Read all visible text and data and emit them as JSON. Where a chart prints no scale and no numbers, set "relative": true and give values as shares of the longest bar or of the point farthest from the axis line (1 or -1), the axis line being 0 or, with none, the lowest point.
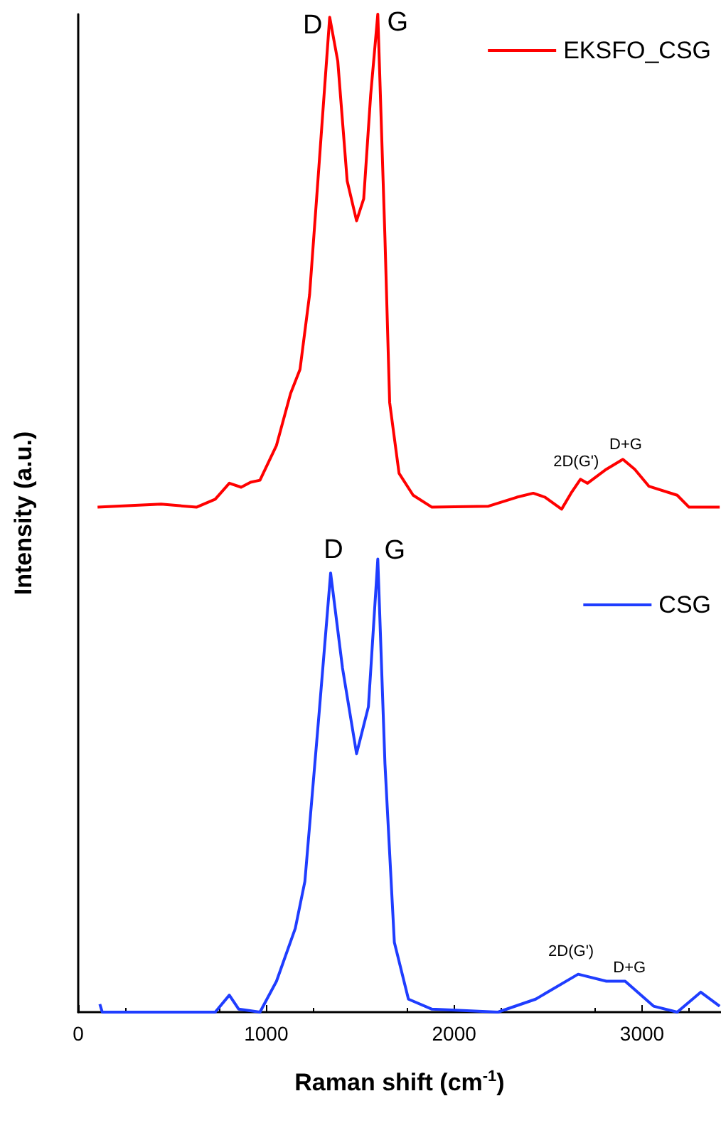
{
  "chart_data": {
    "type": "line",
    "relative": true,
    "xlabel": "Raman shift (cm$^{-1}$)",
    "ylabel": "Intensity (a.u.)",
    "xlim": [
      0,
      3420
    ],
    "xticks": [
      0,
      1000,
      2000,
      3000
    ],
    "grid": false,
    "legend": "top right",
    "marker": "none",
    "line_style": "solid",
    "tick_labels": "x",
    "series": [
      {
        "name": "EKSFO_CSG",
        "color": "#ff0000",
        "x": [
          103,
          441,
          629,
          729,
          804,
          867,
          917,
          967,
          1055,
          1130,
          1180,
          1231,
          1281,
          1338,
          1381,
          1431,
          1481,
          1519,
          1556,
          1594,
          1632,
          1657,
          1707,
          1782,
          1882,
          2183,
          2334,
          2421,
          2484,
          2572,
          2622,
          2672,
          2710,
          2810,
          2898,
          2961,
          3036,
          3187,
          3250,
          3413
        ],
        "values": [
          0.506,
          0.509,
          0.506,
          0.514,
          0.53,
          0.526,
          0.531,
          0.533,
          0.568,
          0.62,
          0.644,
          0.719,
          0.848,
          0.997,
          0.953,
          0.833,
          0.793,
          0.815,
          0.919,
          1.0,
          0.776,
          0.611,
          0.54,
          0.518,
          0.506,
          0.507,
          0.516,
          0.52,
          0.516,
          0.504,
          0.52,
          0.534,
          0.53,
          0.544,
          0.554,
          0.544,
          0.527,
          0.518,
          0.506,
          0.506
        ]
      },
      {
        "name": "CSG",
        "color": "#1f3dff",
        "x": [
          115,
          128,
          729,
          804,
          854,
          967,
          1055,
          1155,
          1206,
          1281,
          1343,
          1406,
          1481,
          1544,
          1594,
          1632,
          1682,
          1757,
          1882,
          2233,
          2434,
          2660,
          2810,
          2910,
          3061,
          3187,
          3312,
          3413
        ],
        "values": [
          0.008,
          0.0,
          0.0,
          0.017,
          0.003,
          0.0,
          0.031,
          0.084,
          0.131,
          0.298,
          0.44,
          0.345,
          0.259,
          0.306,
          0.454,
          0.249,
          0.07,
          0.013,
          0.003,
          0.0,
          0.013,
          0.038,
          0.031,
          0.031,
          0.006,
          0.0,
          0.02,
          0.006
        ]
      }
    ],
    "annotations": [
      {
        "text": "D",
        "x": 1338,
        "y": 0.997
      },
      {
        "text": "G",
        "x": 1594,
        "y": 1.0
      },
      {
        "text": "2D(G')",
        "x": 2672,
        "y": 0.534
      },
      {
        "text": "D+G",
        "x": 2898,
        "y": 0.554
      },
      {
        "text": "D",
        "x": 1343,
        "y": 0.44
      },
      {
        "text": "G",
        "x": 1594,
        "y": 0.454
      },
      {
        "text": "2D(G')",
        "x": 2660,
        "y": 0.038
      },
      {
        "text": "D+G",
        "x": 2910,
        "y": 0.031
      }
    ]
  }
}
